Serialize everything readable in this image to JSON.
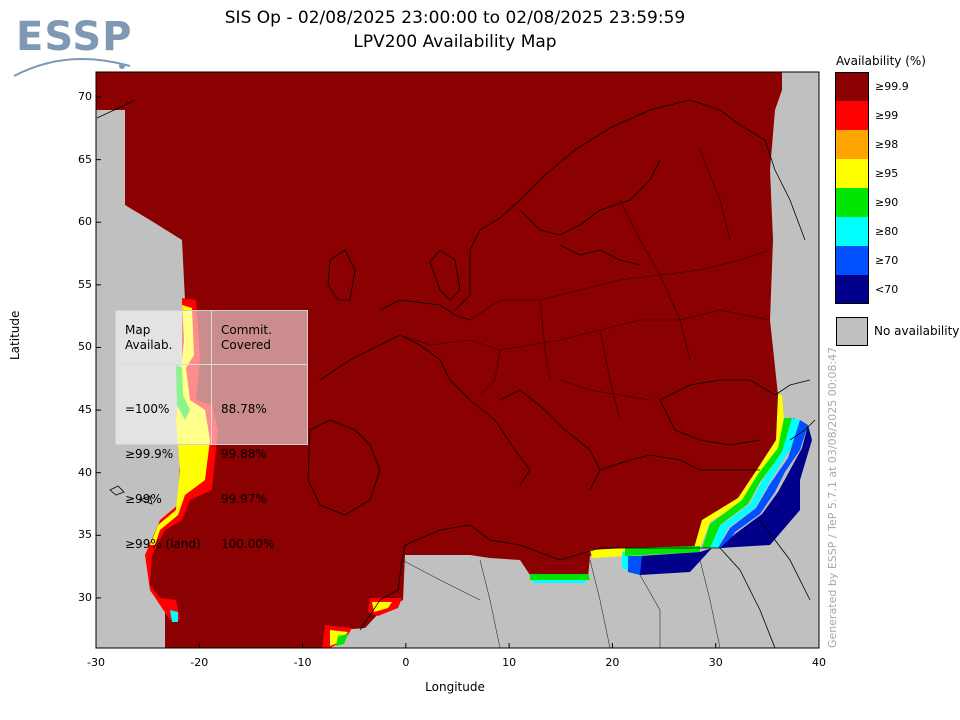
{
  "logo_text": "ESSP",
  "title_line1": "SIS Op - 02/08/2025 23:00:00 to 02/08/2025 23:59:59",
  "title_line2": "LPV200 Availability Map",
  "axes": {
    "xlabel": "Longitude",
    "ylabel": "Latitude",
    "x_ticks": [
      "-30",
      "-20",
      "-10",
      "0",
      "10",
      "20",
      "30",
      "40"
    ],
    "y_ticks": [
      "70",
      "65",
      "60",
      "55",
      "50",
      "45",
      "40",
      "35",
      "30"
    ],
    "xlim": [
      -30,
      40
    ],
    "ylim": [
      26,
      72
    ]
  },
  "legend": {
    "title": "Availability (%)",
    "items": [
      {
        "label": "≥99.9",
        "color": "#8b0000"
      },
      {
        "label": "≥99",
        "color": "#ff0000"
      },
      {
        "label": "≥98",
        "color": "#ffa500"
      },
      {
        "label": "≥95",
        "color": "#ffff00"
      },
      {
        "label": "≥90",
        "color": "#00e600"
      },
      {
        "label": "≥80",
        "color": "#00ffff"
      },
      {
        "label": "≥70",
        "color": "#0050ff"
      },
      {
        "label": "<70",
        "color": "#00008b"
      }
    ],
    "no_availability": {
      "label": "No availability",
      "color": "#c0c0c0"
    }
  },
  "stats_table": {
    "header_col1": "Map\nAvailab.",
    "header_col2": "Commit.\nCovered",
    "rows": [
      {
        "label": "=100%",
        "value": "88.78%"
      },
      {
        "label": "≥99.9%",
        "value": "99.88%"
      },
      {
        "label": "≥99%",
        "value": "99.97%"
      },
      {
        "label": "≥99% (land)",
        "value": "100.00%"
      }
    ]
  },
  "side_note": "Generated by ESSP / TeP 5.7.1 at 03/08/2025 00:08:47"
}
